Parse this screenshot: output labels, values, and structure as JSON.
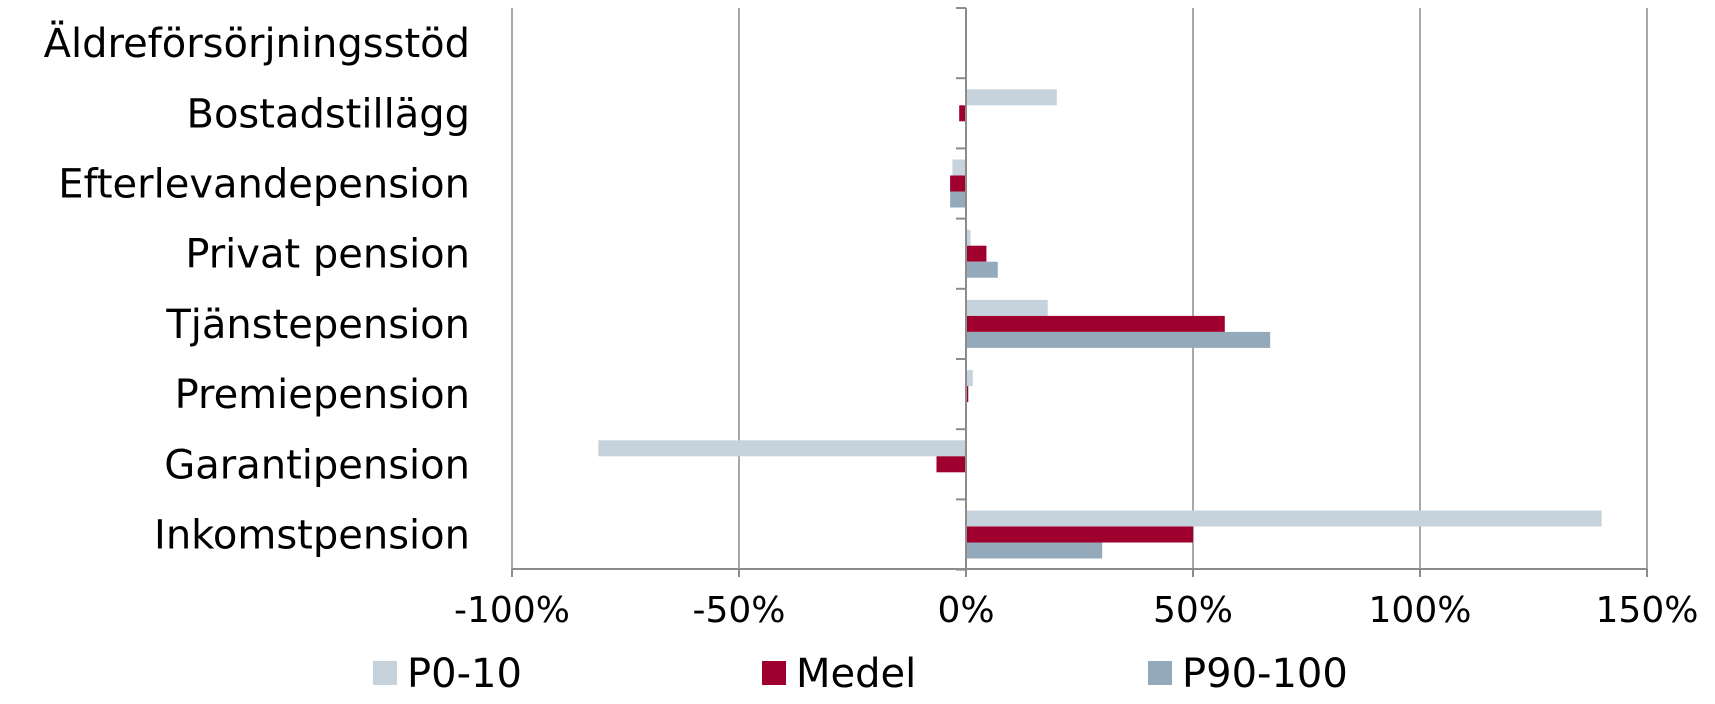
{
  "chart_data": {
    "type": "bar",
    "orientation": "horizontal",
    "categories": [
      "Äldreförsörjningsstöd",
      "Bostadstillägg",
      "Efterlevandepension",
      "Privat pension",
      "Tjänstepension",
      "Premiepension",
      "Garantipension",
      "Inkomstpension"
    ],
    "series": [
      {
        "name": "P0-10",
        "color": "#c6d2dc",
        "values": [
          0,
          20,
          -3,
          1,
          18,
          1.5,
          -81,
          140
        ]
      },
      {
        "name": "Medel",
        "color": "#a0002d",
        "values": [
          0,
          -1.5,
          -3.5,
          4.5,
          57,
          0.5,
          -6.5,
          50
        ]
      },
      {
        "name": "P90-100",
        "color": "#94aabb",
        "values": [
          0,
          0,
          -3.5,
          7,
          67,
          0,
          0,
          30
        ]
      }
    ],
    "xlim": [
      -100,
      150
    ],
    "xticks": [
      -100,
      -50,
      0,
      50,
      100,
      150
    ],
    "xtick_labels": [
      "-100%",
      "-50%",
      "0%",
      "50%",
      "100%",
      "150%"
    ],
    "unit": "%",
    "grid": true,
    "legend_position": "bottom",
    "title": "",
    "xlabel": "",
    "ylabel": ""
  }
}
